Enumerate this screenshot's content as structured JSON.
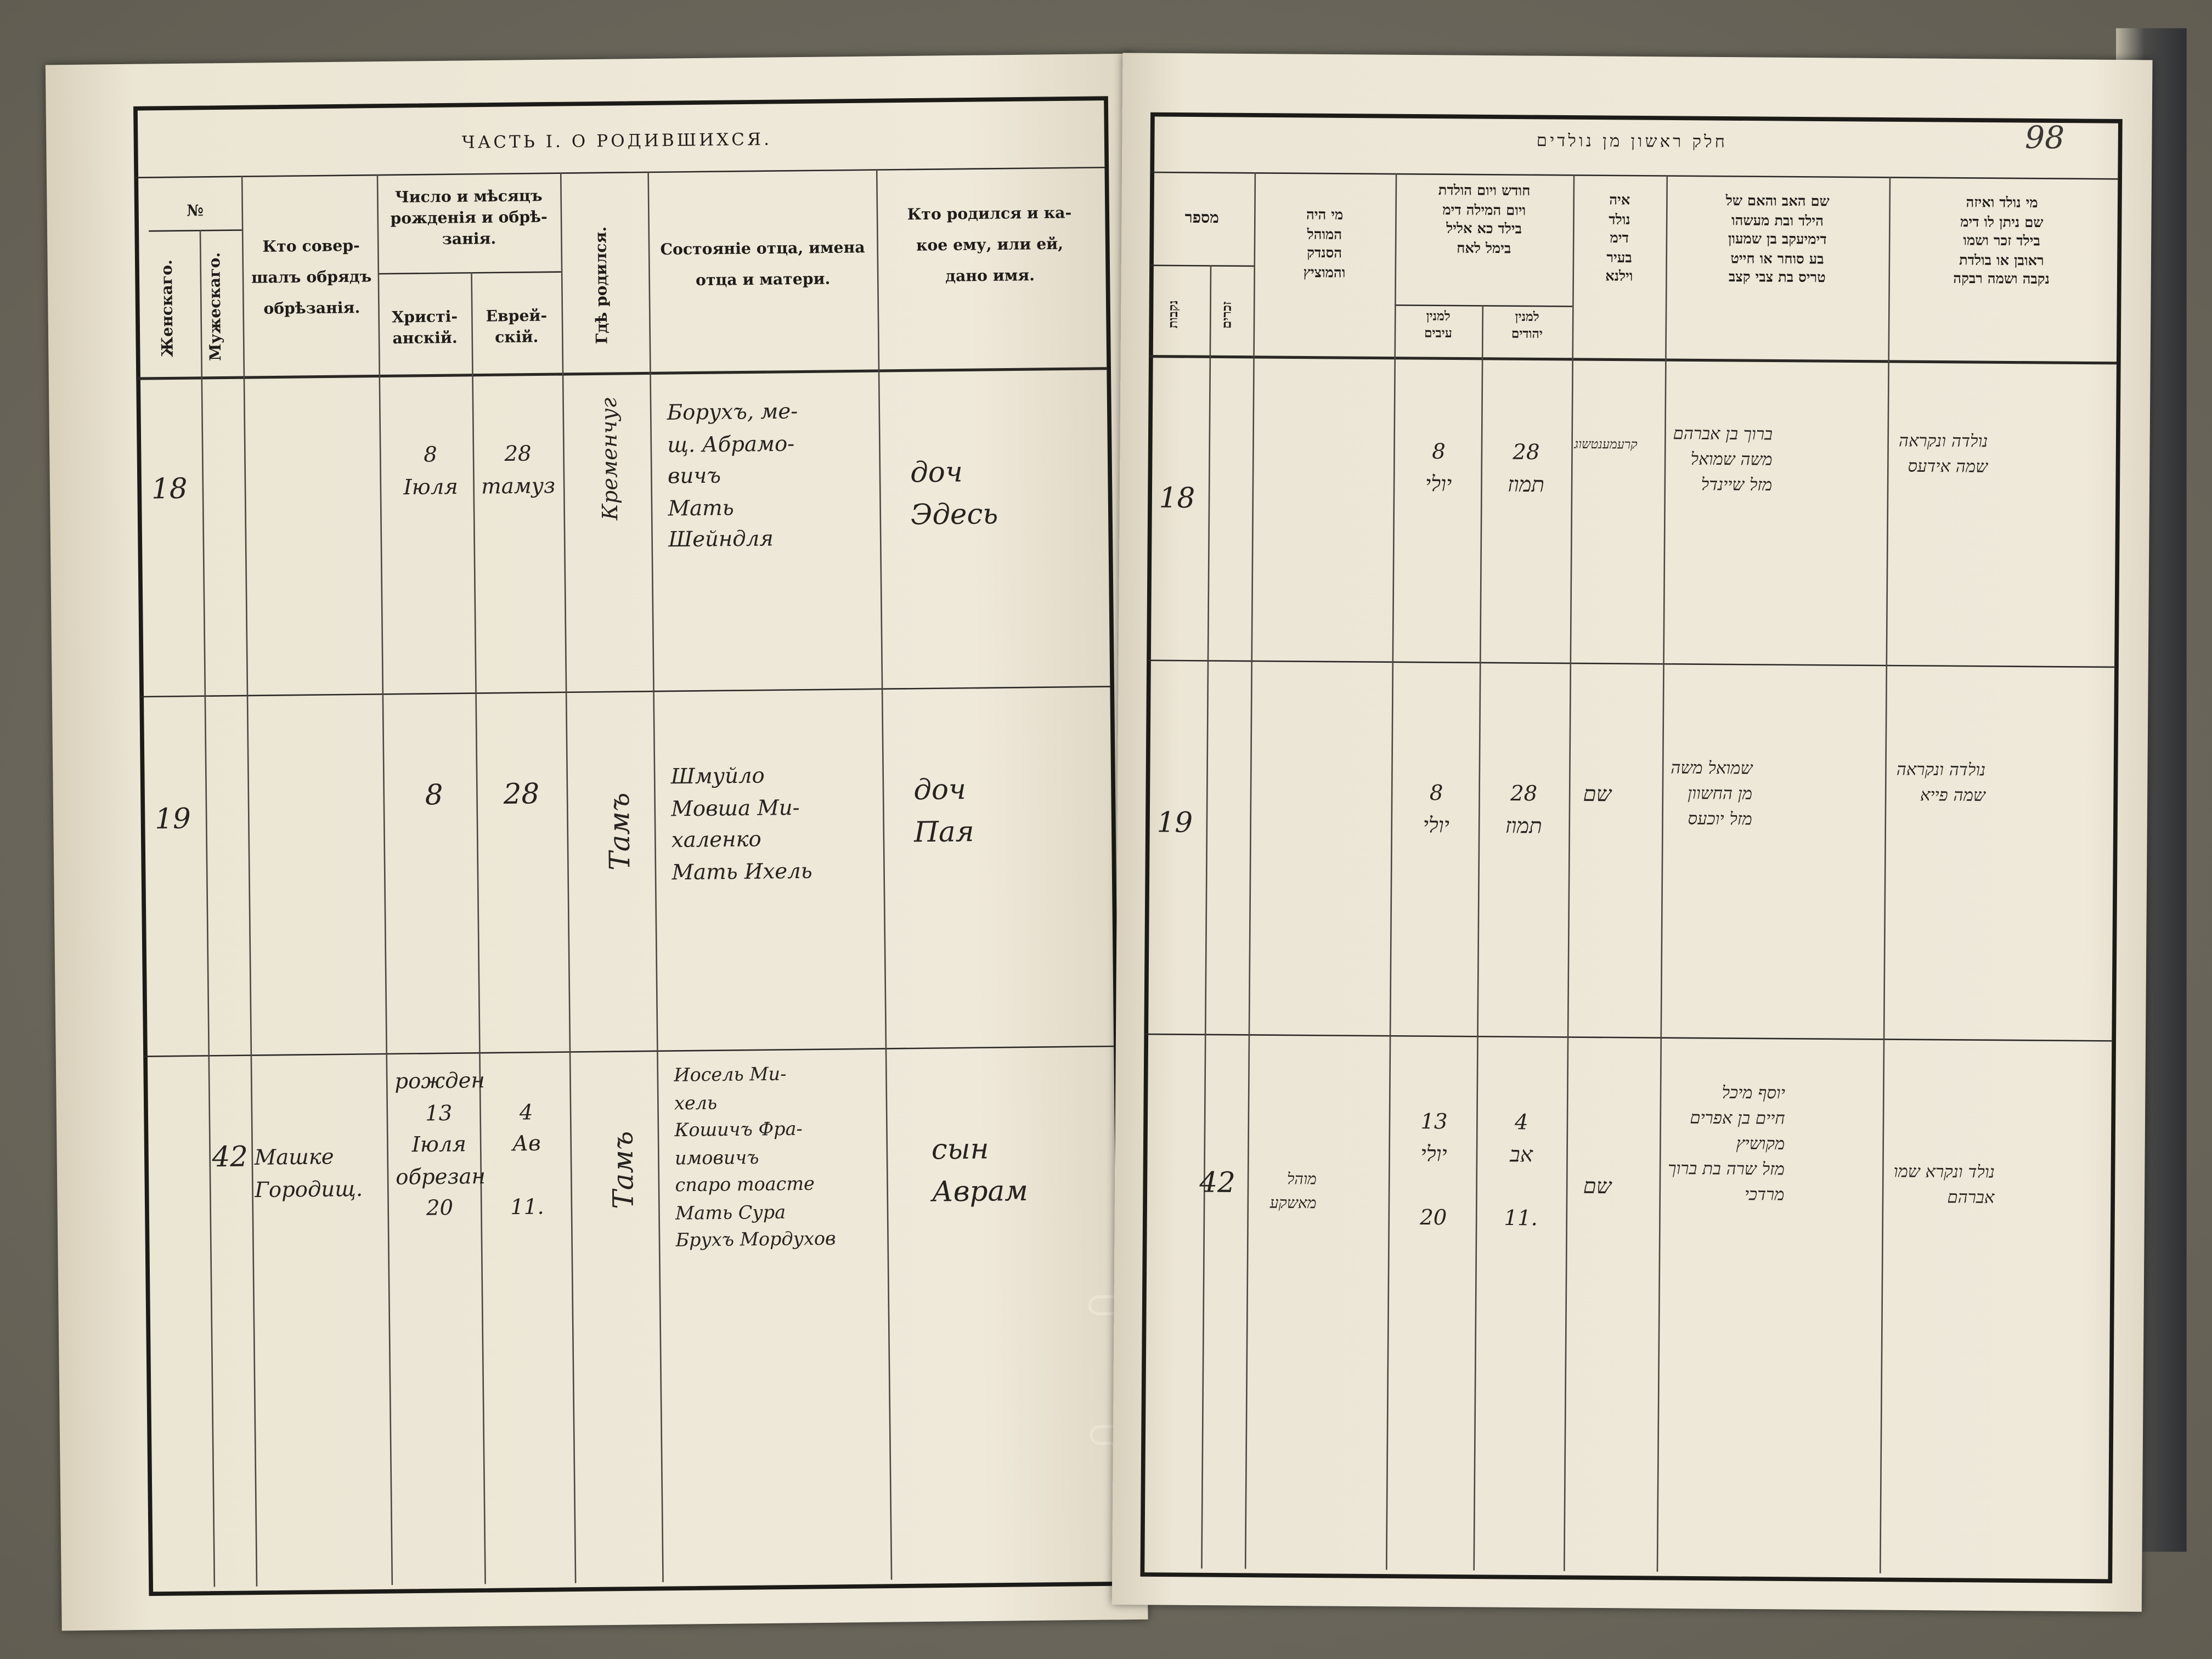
{
  "left_page": {
    "title": "ЧАСТЬ I. О РОДИВШИХСЯ.",
    "headers": {
      "number": "№",
      "female": "Женскаго.",
      "male": "Мужескаго.",
      "performer": "Кто совер-\nшалъ обрядъ\nобрѣзанія.",
      "date_group": "Число и мѣсяцъ\nрожденія и обрѣ-\nзанія.",
      "christian": "Христі-\nанскій.",
      "jewish": "Еврей-\nскій.",
      "place": "Гдѣ родился.",
      "parents": "Состояніе отца, имена\nотца и матери.",
      "child": "Кто родился и ка-\nкое ему, или ей,\nдано имя."
    },
    "rows": [
      {
        "number": "18",
        "performer": "",
        "christian": "8\nІюля",
        "jewish": "28\nтамуз",
        "place": "Кременчуг",
        "parents": "Борухъ, ме-\nщ. Абрамо-\nвичъ\nМать\nШейндля",
        "child": "доч\nЭдесь"
      },
      {
        "number": "19",
        "performer": "",
        "christian": "8",
        "jewish": "28",
        "place": "Тамъ",
        "parents": "Шмуйло\nМовша Ми-\nхаленко\nМать Ихель",
        "child": "доч\nПая"
      },
      {
        "number": "42",
        "performer": "Машке\nГородищ.",
        "christian": "рожден\n13\nІюля\nобрезан\n20",
        "jewish": "\n4\nАв\n\n11.",
        "place": "Тамъ",
        "parents": "Иосель Ми-\nхель\nКошичъ Фра-\nимовичъ\nспаро тоасте\nМать Сура\nБрухъ Мордухов",
        "child": "сын\nАврам"
      }
    ]
  },
  "right_page": {
    "title": "חלק ראשון מן נולדים",
    "page_number": "98",
    "headers": {
      "number": "מספר",
      "female": "נקבות",
      "male": "זכרים",
      "performer": "מי היה\nהמוהל\nהסנדק\nוהמוציץ",
      "date_group": "חודש ויום הולדת\nויום המילה דימ\nבילד כא אליל\nבימל לאח",
      "gentile": "למנין\nעיבים",
      "jewish": "למנין\nיהודים",
      "place": "איה\nנולד\nדימ\nבעיר\nוילנא",
      "parents": "שם האב והאם של\nהילד ובת מעשהו\nדימיעקב בן שמעון\nבע סוחר או חייט\nטריס בת צבי קצב",
      "child": "מי נולד ואיזה\nשם ניתן לו דימ\nבילד זכר ושמו\nראובן או בולדת\nנקבה ושמה רבקה"
    },
    "rows": [
      {
        "number": "18",
        "performer": "",
        "gentile": "8\nיולי",
        "jewish": "28\nתמוז",
        "place": "קרעמענטשוג",
        "parents": "ברוך בן אברהם\nמשה שמואל\nמזל שיינדל",
        "child": "נולדה ונקראה\nשמה אידעס"
      },
      {
        "number": "19",
        "performer": "",
        "gentile": "8\nיולי",
        "jewish": "28\nתמוז",
        "place": "שם",
        "parents": "שמואל משה\nמן החשוון\nמזל יוכעס",
        "child": "נולדה ונקראה\nשמה פייא"
      },
      {
        "number": "42",
        "performer": "מוהל\nמאשקע",
        "gentile": "13\nיולי\n\n20",
        "jewish": "4\nאב\n\n11.",
        "place": "שם",
        "parents": "יוסף מיכל\nחיים בן אפרים\nמקושיץ\nמזל שרה בת ברוך\nמרדכי",
        "child": "נולד ונקרא שמו\nאברהם"
      }
    ]
  }
}
